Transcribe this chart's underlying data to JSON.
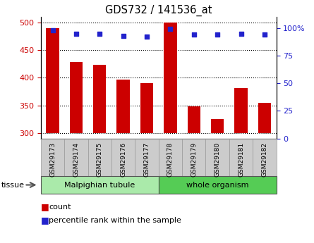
{
  "title": "GDS732 / 141536_at",
  "samples": [
    "GSM29173",
    "GSM29174",
    "GSM29175",
    "GSM29176",
    "GSM29177",
    "GSM29178",
    "GSM29179",
    "GSM29180",
    "GSM29181",
    "GSM29182"
  ],
  "counts": [
    490,
    428,
    424,
    397,
    390,
    500,
    348,
    325,
    381,
    355
  ],
  "percentiles": [
    98,
    95,
    95,
    93,
    92,
    99,
    94,
    94,
    95,
    94
  ],
  "ylim_left": [
    290,
    510
  ],
  "ylim_right": [
    0,
    110
  ],
  "yticks_left": [
    300,
    350,
    400,
    450,
    500
  ],
  "yticks_right": [
    0,
    25,
    50,
    75,
    100
  ],
  "ytick_labels_right": [
    "0",
    "25",
    "50",
    "75",
    "100%"
  ],
  "bar_color": "#cc0000",
  "dot_color": "#2222cc",
  "bar_bottom": 300,
  "groups": [
    {
      "label": "Malpighian tubule",
      "start": 0,
      "end": 5,
      "color": "#aaeaaa"
    },
    {
      "label": "whole organism",
      "start": 5,
      "end": 10,
      "color": "#55cc55"
    }
  ],
  "tissue_label": "tissue",
  "legend_count_label": "count",
  "legend_percentile_label": "percentile rank within the sample",
  "grid_color": "#000000",
  "tick_label_color_left": "#cc0000",
  "tick_label_color_right": "#2222cc",
  "bar_width": 0.55
}
